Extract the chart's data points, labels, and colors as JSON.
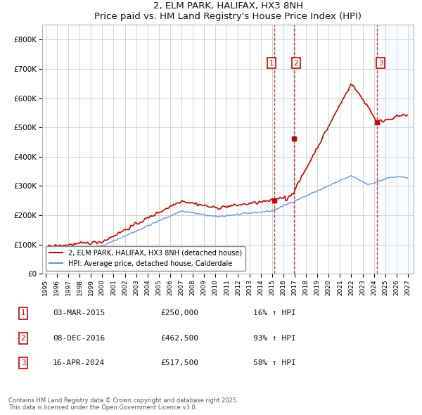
{
  "title": "2, ELM PARK, HALIFAX, HX3 8NH",
  "subtitle": "Price paid vs. HM Land Registry's House Price Index (HPI)",
  "ylim": [
    0,
    850000
  ],
  "yticks": [
    0,
    100000,
    200000,
    300000,
    400000,
    500000,
    600000,
    700000,
    800000
  ],
  "ytick_labels": [
    "£0",
    "£100K",
    "£200K",
    "£300K",
    "£400K",
    "£500K",
    "£600K",
    "£700K",
    "£800K"
  ],
  "x_start_year": 1995,
  "x_end_year": 2027,
  "sale_prices": [
    250000,
    462500,
    517500
  ],
  "sale_labels": [
    "1",
    "2",
    "3"
  ],
  "sale_hpi_pct": [
    "16%",
    "93%",
    "58%"
  ],
  "sale_date_labels": [
    "03-MAR-2015",
    "08-DEC-2016",
    "16-APR-2024"
  ],
  "legend_house_label": "2, ELM PARK, HALIFAX, HX3 8NH (detached house)",
  "legend_hpi_label": "HPI: Average price, detached house, Calderdale",
  "house_color": "#cc0000",
  "hpi_color": "#6699cc",
  "footer": "Contains HM Land Registry data © Crown copyright and database right 2025.\nThis data is licensed under the Open Government Licence v3.0.",
  "bg_color": "#ffffff",
  "grid_color": "#cccccc",
  "shade_color": "#ddeeff",
  "sale_times": [
    2015.17,
    2016.92,
    2024.29
  ]
}
